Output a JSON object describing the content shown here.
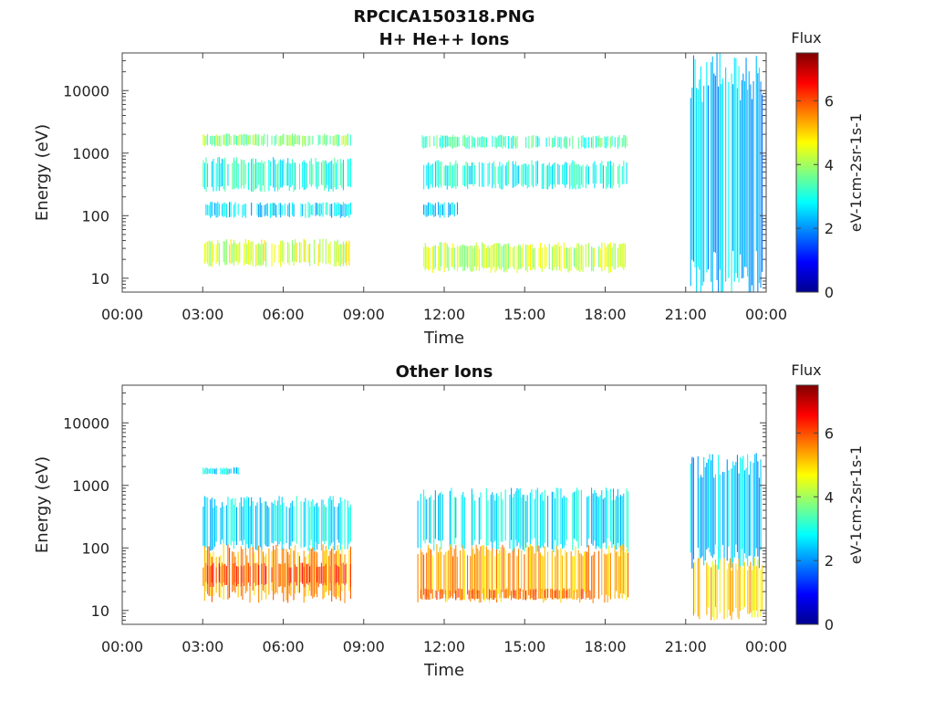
{
  "figure": {
    "title": "RPCICA150318.PNG"
  },
  "colormap": [
    "#00008f",
    "#0000ff",
    "#0080ff",
    "#00ffff",
    "#80ff80",
    "#ffff00",
    "#ff8000",
    "#ff0000",
    "#800000"
  ],
  "chart_data": [
    {
      "type": "heatmap",
      "title": "H+ He++ Ions",
      "xlabel": "Time",
      "ylabel": "Energy (eV)",
      "x_scale": "time",
      "x_range": [
        "00:00",
        "24:00"
      ],
      "x_ticks": [
        "00:00",
        "03:00",
        "06:00",
        "09:00",
        "12:00",
        "15:00",
        "18:00",
        "21:00",
        "00:00"
      ],
      "y_scale": "log",
      "y_range": [
        6,
        40000
      ],
      "y_ticks": [
        10,
        100,
        1000,
        10000
      ],
      "y_tick_labels": [
        "10",
        "100",
        "1000",
        "10000"
      ],
      "colorbar": {
        "title": "Flux",
        "label": "eV-1cm-2sr-1s-1",
        "range": [
          0,
          7.5
        ],
        "ticks": [
          0,
          2,
          4,
          6
        ],
        "tick_labels": [
          "0",
          "2",
          "4",
          "6"
        ]
      },
      "regions": [
        {
          "t_start": "03:00",
          "t_end": "08:30",
          "e_min": 1300,
          "e_max": 2000,
          "flux": 3.8
        },
        {
          "t_start": "03:00",
          "t_end": "08:30",
          "e_min": 260,
          "e_max": 800,
          "flux": 3.0
        },
        {
          "t_start": "03:00",
          "t_end": "08:30",
          "e_min": 95,
          "e_max": 160,
          "flux": 2.6
        },
        {
          "t_start": "03:00",
          "t_end": "08:30",
          "e_min": 16,
          "e_max": 40,
          "flux": 4.4
        },
        {
          "t_start": "11:10",
          "t_end": "18:50",
          "e_min": 1200,
          "e_max": 1900,
          "flux": 3.3
        },
        {
          "t_start": "11:10",
          "t_end": "18:50",
          "e_min": 280,
          "e_max": 720,
          "flux": 3.0
        },
        {
          "t_start": "11:10",
          "t_end": "12:30",
          "e_min": 95,
          "e_max": 160,
          "flux": 2.6
        },
        {
          "t_start": "11:10",
          "t_end": "18:50",
          "e_min": 13,
          "e_max": 35,
          "flux": 4.2
        },
        {
          "t_start": "21:10",
          "t_end": "23:50",
          "e_min": 7,
          "e_max": 22000,
          "flux": 2.4
        }
      ]
    },
    {
      "type": "heatmap",
      "title": "Other Ions",
      "xlabel": "Time",
      "ylabel": "Energy (eV)",
      "x_scale": "time",
      "x_range": [
        "00:00",
        "24:00"
      ],
      "x_ticks": [
        "00:00",
        "03:00",
        "06:00",
        "09:00",
        "12:00",
        "15:00",
        "18:00",
        "21:00",
        "00:00"
      ],
      "y_scale": "log",
      "y_range": [
        6,
        40000
      ],
      "y_ticks": [
        10,
        100,
        1000,
        10000
      ],
      "y_tick_labels": [
        "10",
        "100",
        "1000",
        "10000"
      ],
      "colorbar": {
        "title": "Flux",
        "label": "eV-1cm-2sr-1s-1",
        "range": [
          0,
          7.5
        ],
        "ticks": [
          0,
          2,
          4,
          6
        ],
        "tick_labels": [
          "0",
          "2",
          "4",
          "6"
        ]
      },
      "regions": [
        {
          "t_start": "03:00",
          "t_end": "04:20",
          "e_min": 1500,
          "e_max": 1900,
          "flux": 2.7
        },
        {
          "t_start": "03:00",
          "t_end": "08:30",
          "e_min": 100,
          "e_max": 600,
          "flux": 2.7
        },
        {
          "t_start": "03:00",
          "t_end": "08:30",
          "e_min": 15,
          "e_max": 100,
          "flux": 5.4
        },
        {
          "t_start": "03:00",
          "t_end": "08:30",
          "e_min": 25,
          "e_max": 55,
          "flux": 6.0
        },
        {
          "t_start": "11:00",
          "t_end": "18:50",
          "e_min": 100,
          "e_max": 800,
          "flux": 2.7
        },
        {
          "t_start": "11:00",
          "t_end": "18:50",
          "e_min": 15,
          "e_max": 100,
          "flux": 5.3
        },
        {
          "t_start": "11:00",
          "t_end": "17:30",
          "e_min": 15,
          "e_max": 22,
          "flux": 5.8
        },
        {
          "t_start": "21:10",
          "t_end": "23:50",
          "e_min": 60,
          "e_max": 2500,
          "flux": 2.4
        },
        {
          "t_start": "21:10",
          "t_end": "23:50",
          "e_min": 8,
          "e_max": 60,
          "flux": 5.0
        }
      ]
    }
  ]
}
